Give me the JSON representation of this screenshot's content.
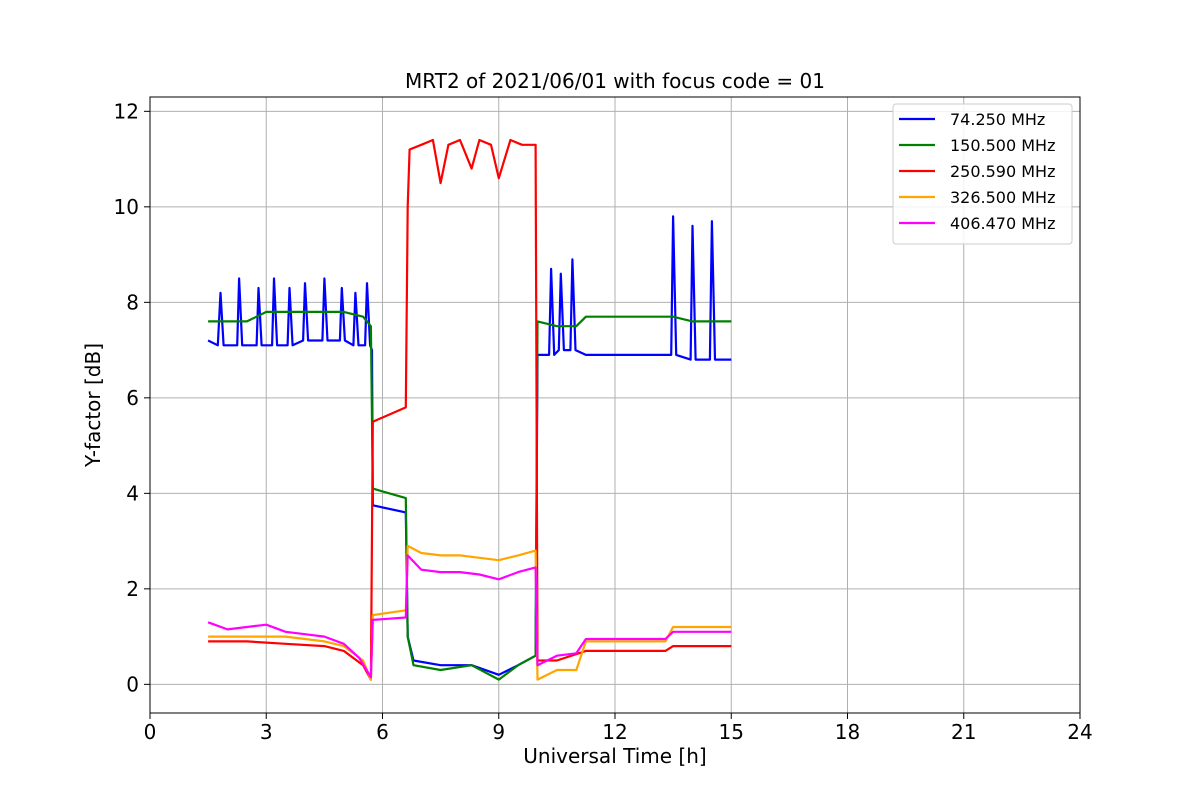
{
  "chart_data": {
    "type": "line",
    "title": "MRT2 of 2021/06/01 with focus code = 01",
    "xlabel": "Universal Time [h]",
    "ylabel": "Y-factor [dB]",
    "xlim": [
      0,
      24
    ],
    "ylim": [
      -0.6,
      12.3
    ],
    "xticks": [
      0,
      3,
      6,
      9,
      12,
      15,
      18,
      21,
      24
    ],
    "yticks": [
      0,
      2,
      4,
      6,
      8,
      10,
      12
    ],
    "grid": true,
    "legend_position": "top-right",
    "series": [
      {
        "name": " 74.250 MHz",
        "color": "#0000ff",
        "points": [
          [
            1.5,
            7.2
          ],
          [
            1.75,
            7.1
          ],
          [
            1.82,
            8.2
          ],
          [
            1.9,
            7.1
          ],
          [
            2.25,
            7.1
          ],
          [
            2.3,
            8.5
          ],
          [
            2.38,
            7.1
          ],
          [
            2.75,
            7.1
          ],
          [
            2.8,
            8.3
          ],
          [
            2.88,
            7.1
          ],
          [
            3.15,
            7.1
          ],
          [
            3.2,
            8.5
          ],
          [
            3.28,
            7.1
          ],
          [
            3.55,
            7.1
          ],
          [
            3.6,
            8.3
          ],
          [
            3.68,
            7.1
          ],
          [
            3.95,
            7.2
          ],
          [
            4.0,
            8.4
          ],
          [
            4.08,
            7.2
          ],
          [
            4.45,
            7.2
          ],
          [
            4.5,
            8.5
          ],
          [
            4.58,
            7.2
          ],
          [
            4.9,
            7.2
          ],
          [
            4.95,
            8.3
          ],
          [
            5.03,
            7.2
          ],
          [
            5.25,
            7.1
          ],
          [
            5.3,
            8.2
          ],
          [
            5.38,
            7.1
          ],
          [
            5.55,
            7.1
          ],
          [
            5.6,
            8.4
          ],
          [
            5.68,
            7.1
          ],
          [
            5.73,
            7.0
          ],
          [
            5.75,
            3.75
          ],
          [
            6.6,
            3.6
          ],
          [
            6.65,
            1.0
          ],
          [
            6.8,
            0.5
          ],
          [
            7.5,
            0.4
          ],
          [
            8.3,
            0.4
          ],
          [
            9.0,
            0.2
          ],
          [
            9.5,
            0.4
          ],
          [
            9.95,
            0.6
          ],
          [
            10.0,
            6.9
          ],
          [
            10.3,
            6.9
          ],
          [
            10.35,
            8.7
          ],
          [
            10.43,
            6.9
          ],
          [
            10.55,
            7.0
          ],
          [
            10.6,
            8.6
          ],
          [
            10.68,
            7.0
          ],
          [
            10.85,
            7.0
          ],
          [
            10.9,
            8.9
          ],
          [
            10.98,
            7.0
          ],
          [
            11.25,
            6.9
          ],
          [
            13.3,
            6.9
          ],
          [
            13.45,
            6.9
          ],
          [
            13.5,
            9.8
          ],
          [
            13.58,
            6.9
          ],
          [
            13.95,
            6.8
          ],
          [
            14.0,
            9.6
          ],
          [
            14.08,
            6.8
          ],
          [
            14.45,
            6.8
          ],
          [
            14.5,
            9.7
          ],
          [
            14.58,
            6.8
          ],
          [
            15.0,
            6.8
          ]
        ]
      },
      {
        "name": "150.500 MHz",
        "color": "#008000",
        "points": [
          [
            1.5,
            7.6
          ],
          [
            2.0,
            7.6
          ],
          [
            2.5,
            7.6
          ],
          [
            3.0,
            7.8
          ],
          [
            3.5,
            7.8
          ],
          [
            4.0,
            7.8
          ],
          [
            4.5,
            7.8
          ],
          [
            5.0,
            7.8
          ],
          [
            5.5,
            7.7
          ],
          [
            5.7,
            7.5
          ],
          [
            5.75,
            4.1
          ],
          [
            6.6,
            3.9
          ],
          [
            6.65,
            1.0
          ],
          [
            6.8,
            0.4
          ],
          [
            7.5,
            0.3
          ],
          [
            8.3,
            0.4
          ],
          [
            9.0,
            0.1
          ],
          [
            9.5,
            0.4
          ],
          [
            9.95,
            0.6
          ],
          [
            10.0,
            7.6
          ],
          [
            10.5,
            7.5
          ],
          [
            11.0,
            7.5
          ],
          [
            11.25,
            7.7
          ],
          [
            13.3,
            7.7
          ],
          [
            13.5,
            7.7
          ],
          [
            14.0,
            7.6
          ],
          [
            14.5,
            7.6
          ],
          [
            15.0,
            7.6
          ]
        ]
      },
      {
        "name": "250.590 MHz",
        "color": "#ff0000",
        "points": [
          [
            1.5,
            0.9
          ],
          [
            2.5,
            0.9
          ],
          [
            3.5,
            0.85
          ],
          [
            4.5,
            0.8
          ],
          [
            5.0,
            0.7
          ],
          [
            5.5,
            0.4
          ],
          [
            5.7,
            0.1
          ],
          [
            5.75,
            5.5
          ],
          [
            6.6,
            5.8
          ],
          [
            6.65,
            10.0
          ],
          [
            6.7,
            11.2
          ],
          [
            7.0,
            11.3
          ],
          [
            7.3,
            11.4
          ],
          [
            7.5,
            10.5
          ],
          [
            7.7,
            11.3
          ],
          [
            8.0,
            11.4
          ],
          [
            8.3,
            10.8
          ],
          [
            8.5,
            11.4
          ],
          [
            8.8,
            11.3
          ],
          [
            9.0,
            10.6
          ],
          [
            9.3,
            11.4
          ],
          [
            9.6,
            11.3
          ],
          [
            9.95,
            11.3
          ],
          [
            10.0,
            0.5
          ],
          [
            10.5,
            0.5
          ],
          [
            11.25,
            0.7
          ],
          [
            13.3,
            0.7
          ],
          [
            13.5,
            0.8
          ],
          [
            14.0,
            0.8
          ],
          [
            15.0,
            0.8
          ]
        ]
      },
      {
        "name": "326.500 MHz",
        "color": "#ffa500",
        "points": [
          [
            1.5,
            1.0
          ],
          [
            2.5,
            1.0
          ],
          [
            3.5,
            1.0
          ],
          [
            4.5,
            0.9
          ],
          [
            5.0,
            0.8
          ],
          [
            5.5,
            0.5
          ],
          [
            5.7,
            0.1
          ],
          [
            5.75,
            1.45
          ],
          [
            6.6,
            1.55
          ],
          [
            6.65,
            2.9
          ],
          [
            7.0,
            2.75
          ],
          [
            7.5,
            2.7
          ],
          [
            8.0,
            2.7
          ],
          [
            8.5,
            2.65
          ],
          [
            9.0,
            2.6
          ],
          [
            9.5,
            2.7
          ],
          [
            9.95,
            2.8
          ],
          [
            10.0,
            0.1
          ],
          [
            10.5,
            0.3
          ],
          [
            11.0,
            0.3
          ],
          [
            11.25,
            0.9
          ],
          [
            13.3,
            0.9
          ],
          [
            13.5,
            1.2
          ],
          [
            14.0,
            1.2
          ],
          [
            15.0,
            1.2
          ]
        ]
      },
      {
        "name": "406.470 MHz",
        "color": "#ff00ff",
        "points": [
          [
            1.5,
            1.3
          ],
          [
            2.0,
            1.15
          ],
          [
            2.5,
            1.2
          ],
          [
            3.0,
            1.25
          ],
          [
            3.5,
            1.1
          ],
          [
            4.0,
            1.05
          ],
          [
            4.5,
            1.0
          ],
          [
            5.0,
            0.85
          ],
          [
            5.4,
            0.55
          ],
          [
            5.7,
            0.15
          ],
          [
            5.75,
            1.35
          ],
          [
            6.6,
            1.4
          ],
          [
            6.65,
            2.7
          ],
          [
            7.0,
            2.4
          ],
          [
            7.5,
            2.35
          ],
          [
            8.0,
            2.35
          ],
          [
            8.5,
            2.3
          ],
          [
            9.0,
            2.2
          ],
          [
            9.5,
            2.35
          ],
          [
            9.95,
            2.45
          ],
          [
            10.0,
            0.4
          ],
          [
            10.5,
            0.6
          ],
          [
            11.0,
            0.65
          ],
          [
            11.25,
            0.95
          ],
          [
            13.3,
            0.95
          ],
          [
            13.5,
            1.1
          ],
          [
            14.0,
            1.1
          ],
          [
            15.0,
            1.1
          ]
        ]
      }
    ]
  }
}
